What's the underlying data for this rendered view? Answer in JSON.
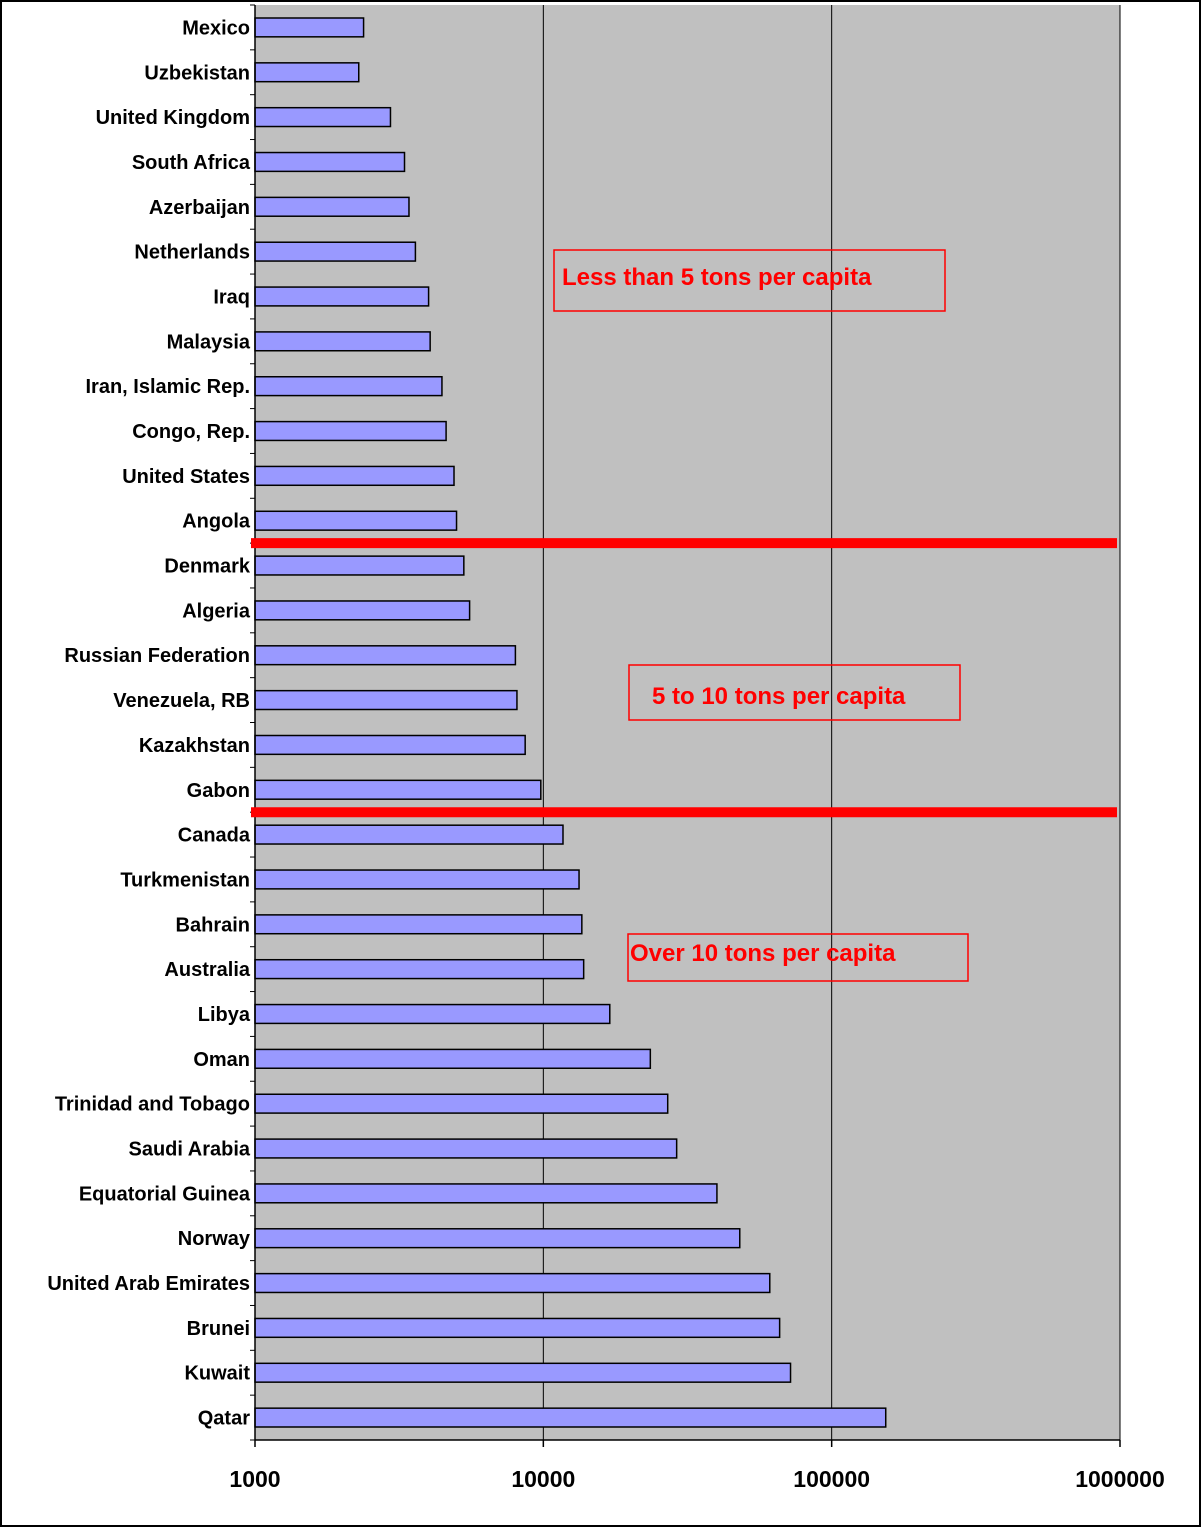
{
  "colors": {
    "plot_background": "#c0c0c0",
    "bar_fill": "#9999ff",
    "bar_stroke": "#000000",
    "divider": "#ff0000",
    "annotation_text": "#ff0000"
  },
  "chart_data": {
    "type": "bar",
    "orientation": "horizontal",
    "x_scale": "log",
    "xlim": [
      1000,
      1000000
    ],
    "x_ticks": [
      "1000",
      "10000",
      "100000",
      "1000000"
    ],
    "grid": "vertical major gridlines",
    "title": "",
    "xlabel": "",
    "ylabel": "",
    "categories": [
      "Mexico",
      "Uzbekistan",
      "United Kingdom",
      "South Africa",
      "Azerbaijan",
      "Netherlands",
      "Iraq",
      "Malaysia",
      "Iran, Islamic Rep.",
      "Congo, Rep.",
      "United States",
      "Angola",
      "Denmark",
      "Algeria",
      "Russian Federation",
      "Venezuela, RB",
      "Kazakhstan",
      "Gabon",
      "Canada",
      "Turkmenistan",
      "Bahrain",
      "Australia",
      "Libya",
      "Oman",
      "Trinidad and Tobago",
      "Saudi Arabia",
      "Equatorial Guinea",
      "Norway",
      "United Arab Emirates",
      "Brunei",
      "Kuwait",
      "Qatar"
    ],
    "values": [
      2380,
      2290,
      2950,
      3300,
      3420,
      3600,
      4000,
      4050,
      4450,
      4600,
      4900,
      5000,
      5300,
      5550,
      8000,
      8100,
      8650,
      9800,
      11700,
      13300,
      13600,
      13800,
      17000,
      23500,
      27000,
      29000,
      40000,
      48000,
      61000,
      66000,
      72000,
      154000
    ],
    "dividers_between": [
      [
        "Angola",
        "Denmark"
      ],
      [
        "Gabon",
        "Canada"
      ]
    ],
    "annotations": [
      "Less than 5 tons per capita",
      "5 to 10 tons per capita",
      "Over 10 tons per capita"
    ]
  }
}
